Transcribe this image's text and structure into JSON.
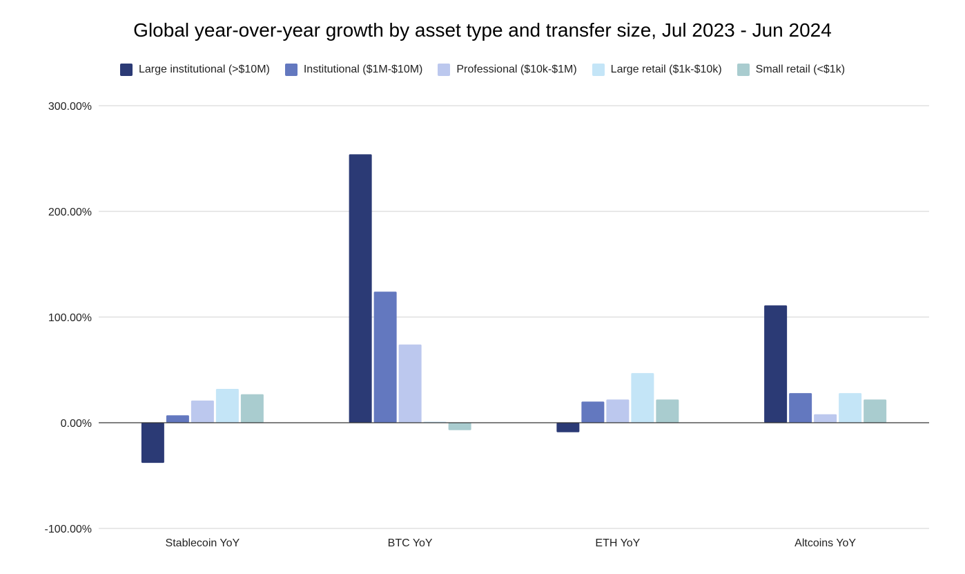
{
  "chart_data": {
    "type": "bar",
    "title": "Global year-over-year growth by asset type and transfer size, Jul 2023 - Jun 2024",
    "xlabel": "",
    "ylabel": "",
    "categories": [
      "Stablecoin YoY",
      "BTC YoY",
      "ETH YoY",
      "Altcoins YoY"
    ],
    "ylim": [
      -100,
      300
    ],
    "yticks": [
      -100,
      0,
      100,
      200,
      300
    ],
    "ytick_labels": [
      "-100.00%",
      "0.00%",
      "100.00%",
      "200.00%",
      "300.00%"
    ],
    "grid": "horizontal",
    "legend_position": "top",
    "series": [
      {
        "name": "Large institutional (>$10M)",
        "color": "#2b3a75",
        "values": [
          -38,
          254,
          -9,
          111
        ]
      },
      {
        "name": "Institutional ($1M-$10M)",
        "color": "#6378bf",
        "values": [
          7,
          124,
          20,
          28
        ]
      },
      {
        "name": "Professional ($10k-$1M)",
        "color": "#bcc8ee",
        "values": [
          21,
          74,
          22,
          8
        ]
      },
      {
        "name": "Large retail ($1k-$10k)",
        "color": "#c4e5f7",
        "values": [
          32,
          1,
          47,
          28
        ]
      },
      {
        "name": "Small retail (<$1k)",
        "color": "#a9cccf",
        "values": [
          27,
          -7,
          22,
          22
        ]
      }
    ]
  }
}
